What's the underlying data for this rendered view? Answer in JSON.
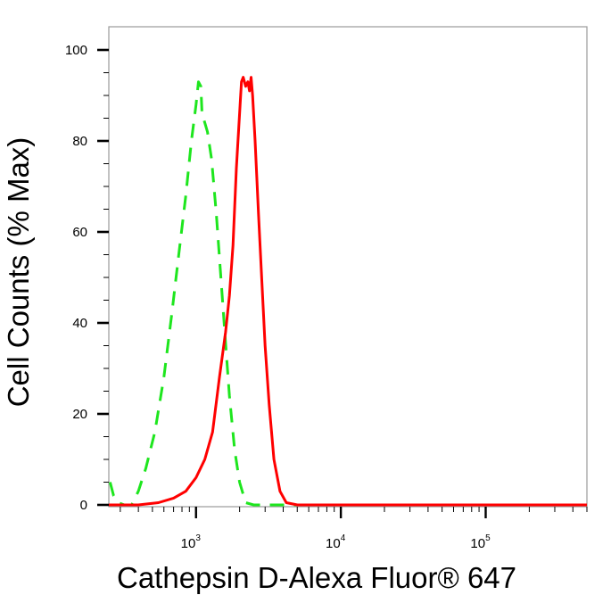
{
  "chart_data": {
    "type": "line",
    "xlabel": "Cathepsin D-Alexa Fluor® 647",
    "ylabel": "Cell Counts (% Max)",
    "x_scale": "log",
    "xlim": [
      250,
      500000
    ],
    "ylim": [
      0,
      100
    ],
    "grid": false,
    "y_ticks": [
      {
        "value": 0,
        "label": "0"
      },
      {
        "value": 20,
        "label": "20"
      },
      {
        "value": 40,
        "label": "40"
      },
      {
        "value": 60,
        "label": "60"
      },
      {
        "value": 80,
        "label": "80"
      },
      {
        "value": 100,
        "label": "100"
      }
    ],
    "x_ticks": [
      {
        "value": 1000,
        "base": "10",
        "exp": "3"
      },
      {
        "value": 10000,
        "base": "10",
        "exp": "4"
      },
      {
        "value": 100000,
        "base": "10",
        "exp": "5"
      }
    ],
    "series": [
      {
        "color": "#1ee61e",
        "style": "dashed",
        "points": [
          [
            255,
            5
          ],
          [
            270,
            2
          ],
          [
            290,
            0.5
          ],
          [
            320,
            0
          ],
          [
            360,
            0
          ],
          [
            400,
            3
          ],
          [
            450,
            8
          ],
          [
            520,
            16
          ],
          [
            600,
            28
          ],
          [
            680,
            42
          ],
          [
            760,
            55
          ],
          [
            850,
            68
          ],
          [
            930,
            80
          ],
          [
            1000,
            88
          ],
          [
            1040,
            93
          ],
          [
            1080,
            92
          ],
          [
            1100,
            86
          ],
          [
            1150,
            84
          ],
          [
            1200,
            82
          ],
          [
            1280,
            76
          ],
          [
            1380,
            64
          ],
          [
            1470,
            52
          ],
          [
            1580,
            38
          ],
          [
            1700,
            24
          ],
          [
            1850,
            12
          ],
          [
            2000,
            5
          ],
          [
            2200,
            0.5
          ],
          [
            2500,
            0
          ],
          [
            500000,
            0
          ]
        ]
      },
      {
        "color": "#ff0000",
        "style": "solid",
        "points": [
          [
            250,
            0
          ],
          [
            400,
            0
          ],
          [
            550,
            0.5
          ],
          [
            700,
            1.5
          ],
          [
            850,
            3
          ],
          [
            1000,
            6
          ],
          [
            1150,
            10
          ],
          [
            1300,
            16
          ],
          [
            1450,
            28
          ],
          [
            1600,
            38
          ],
          [
            1700,
            46
          ],
          [
            1800,
            57
          ],
          [
            1900,
            74
          ],
          [
            2000,
            86
          ],
          [
            2060,
            93
          ],
          [
            2120,
            94
          ],
          [
            2200,
            92
          ],
          [
            2280,
            93
          ],
          [
            2340,
            91
          ],
          [
            2400,
            94
          ],
          [
            2460,
            90
          ],
          [
            2560,
            80
          ],
          [
            2700,
            64
          ],
          [
            2850,
            49
          ],
          [
            3000,
            35
          ],
          [
            3200,
            22
          ],
          [
            3450,
            10
          ],
          [
            3800,
            3
          ],
          [
            4200,
            0.5
          ],
          [
            5000,
            0
          ],
          [
            500000,
            0
          ]
        ]
      }
    ]
  }
}
